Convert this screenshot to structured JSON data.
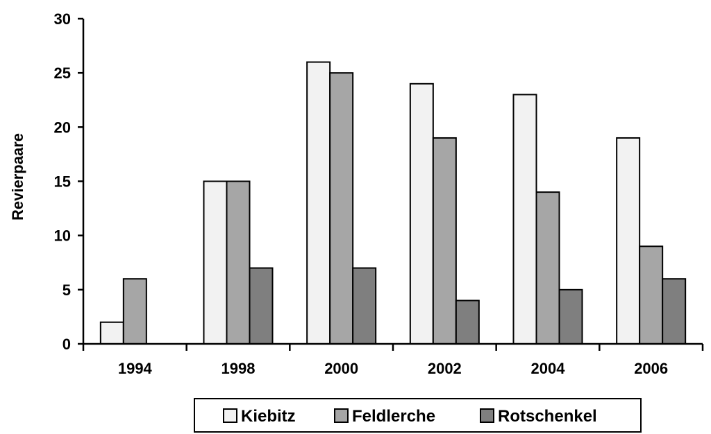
{
  "chart_data": {
    "type": "bar",
    "title": "",
    "xlabel": "",
    "ylabel": "Revierpaare",
    "ylim": [
      0,
      30
    ],
    "yticks": [
      0,
      5,
      10,
      15,
      20,
      25,
      30
    ],
    "categories": [
      "1994",
      "1998",
      "2000",
      "2002",
      "2004",
      "2006"
    ],
    "series": [
      {
        "name": "Kiebitz",
        "color": "#f2f2f2",
        "values": [
          2,
          15,
          26,
          24,
          23,
          19
        ]
      },
      {
        "name": "Feldlerche",
        "color": "#a6a6a6",
        "values": [
          6,
          15,
          25,
          19,
          14,
          9
        ]
      },
      {
        "name": "Rotschenkel",
        "color": "#7f7f7f",
        "values": [
          0,
          7,
          7,
          4,
          5,
          6
        ]
      }
    ],
    "grid": false,
    "legend": "bottom"
  }
}
